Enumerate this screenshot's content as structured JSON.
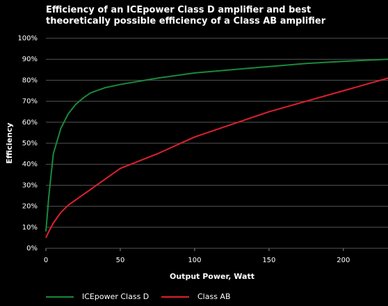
{
  "chart_data": {
    "type": "line",
    "title": "Efficiency of an ICEpower Class D amplifier and best theoretically possible efficiency of a Class AB amplifier",
    "xlabel": "Output Power, Watt",
    "ylabel": "Efficiency",
    "x": [
      0,
      2,
      5,
      10,
      15,
      20,
      25,
      30,
      40,
      50,
      75,
      100,
      125,
      150,
      175,
      200,
      230
    ],
    "series": [
      {
        "name": "ICEpower Class D",
        "color": "#1a8a3c",
        "values": [
          8,
          25,
          45,
          57,
          64,
          68.5,
          71.5,
          74,
          76.5,
          78,
          81,
          83.5,
          85,
          86.5,
          88,
          89,
          90
        ]
      },
      {
        "name": "Class AB",
        "color": "#e0202e",
        "values": [
          5,
          8,
          12,
          17,
          20.5,
          23,
          25.5,
          28,
          33,
          38,
          45,
          53,
          59,
          65,
          70,
          75,
          81
        ]
      }
    ],
    "xlim": [
      0,
      230
    ],
    "xticks": [
      0,
      50,
      100,
      150,
      200
    ],
    "ylim": [
      0,
      100
    ],
    "yticks": [
      {
        "value": 0,
        "label": "0%"
      },
      {
        "value": 10,
        "label": "10%"
      },
      {
        "value": 20,
        "label": "20%"
      },
      {
        "value": 30,
        "label": "30%"
      },
      {
        "value": 40,
        "label": "40%"
      },
      {
        "value": 50,
        "label": "50%"
      },
      {
        "value": 60,
        "label": "60%"
      },
      {
        "value": 70,
        "label": "70%"
      },
      {
        "value": 80,
        "label": "80%"
      },
      {
        "value": 90,
        "label": "90%"
      },
      {
        "value": 100,
        "label": "100%"
      }
    ],
    "grid": true,
    "legend": "bottom"
  }
}
